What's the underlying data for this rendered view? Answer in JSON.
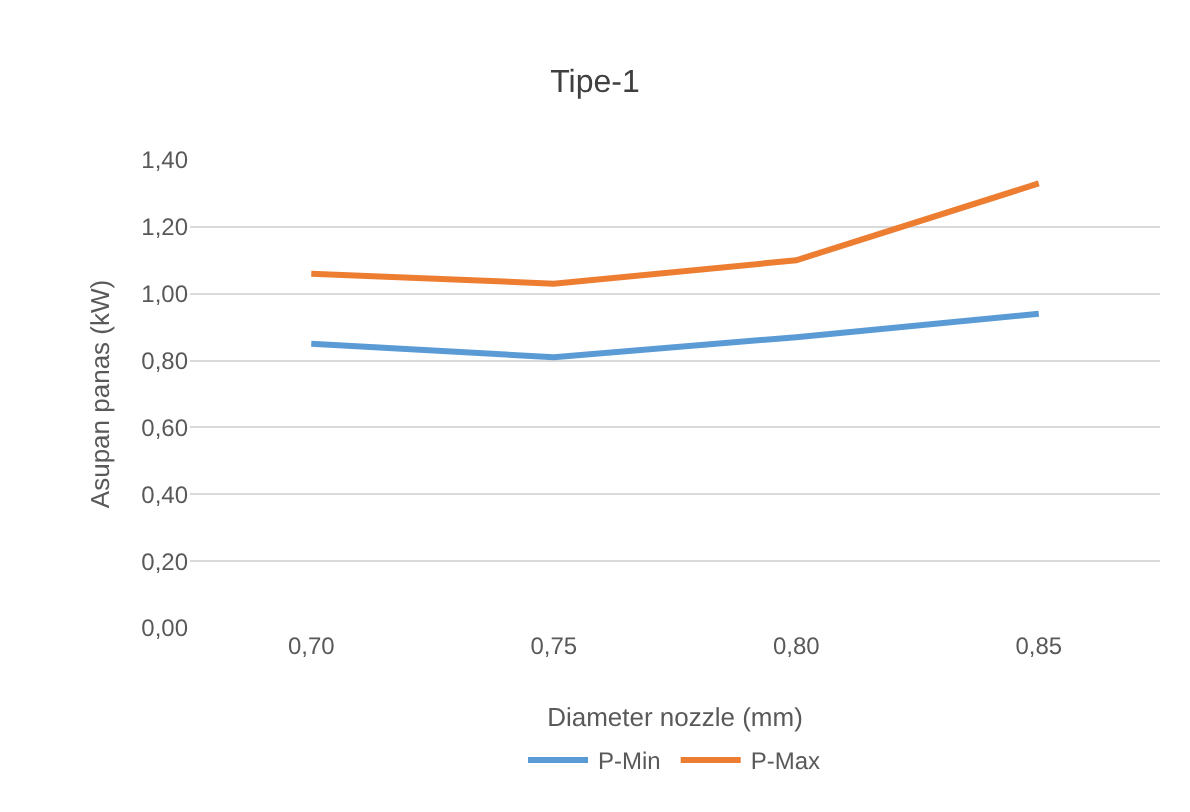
{
  "chart_data": {
    "type": "line",
    "title": "Tipe-1",
    "xlabel": "Diameter nozzle (mm)",
    "ylabel": "Asupan panas (kW)",
    "categories": [
      "0,70",
      "0,75",
      "0,80",
      "0,85"
    ],
    "series": [
      {
        "name": "P-Min",
        "color": "#5b9bd5",
        "values": [
          0.85,
          0.81,
          0.87,
          0.94
        ]
      },
      {
        "name": "P-Max",
        "color": "#ed7d31",
        "values": [
          1.06,
          1.03,
          1.1,
          1.33
        ]
      }
    ],
    "ylim": [
      0,
      1.4
    ],
    "yticks": [
      {
        "value": 0,
        "label": "0,00"
      },
      {
        "value": 0.2,
        "label": "0,20"
      },
      {
        "value": 0.4,
        "label": "0,40"
      },
      {
        "value": 0.6,
        "label": "0,60"
      },
      {
        "value": 0.8,
        "label": "0,80"
      },
      {
        "value": 1,
        "label": "1,00"
      },
      {
        "value": 1.2,
        "label": "1,20"
      },
      {
        "value": 1.4,
        "label": "1,40"
      }
    ],
    "grid": "y",
    "legend": "bottom",
    "marker": "none",
    "line_style": "solid"
  }
}
